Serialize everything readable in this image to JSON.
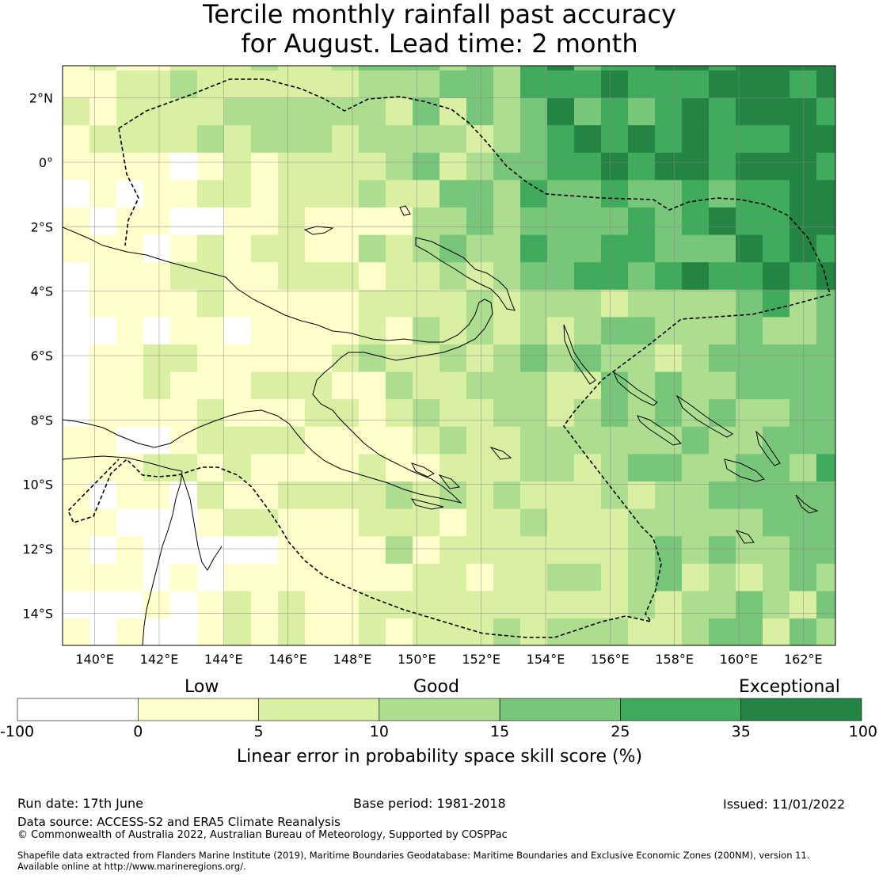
{
  "title": {
    "line1": "Tercile monthly rainfall past accuracy",
    "line2": "for August. Lead time: 2 month"
  },
  "map": {
    "lon_ticks": [
      "140°E",
      "142°E",
      "144°E",
      "146°E",
      "148°E",
      "150°E",
      "152°E",
      "154°E",
      "156°E",
      "158°E",
      "160°E",
      "162°E"
    ],
    "lat_ticks": [
      "2°N",
      "0°",
      "2°S",
      "4°S",
      "6°S",
      "8°S",
      "10°S",
      "12°S",
      "14°S"
    ],
    "extent": {
      "lon": [
        139,
        163
      ],
      "lat": [
        -15,
        3
      ]
    },
    "grid_step_deg": 0.84,
    "grid_lines": true
  },
  "colorbar": {
    "categories": [
      "Low",
      "Good",
      "Exceptional"
    ],
    "tick_labels": [
      "-100",
      "0",
      "5",
      "10",
      "15",
      "25",
      "35",
      "100"
    ],
    "colors": [
      "#ffffff",
      "#ffffcc",
      "#d9f0a3",
      "#addd8e",
      "#78c679",
      "#41ab5d",
      "#238443"
    ],
    "label": "Linear error in probability space skill score (%)"
  },
  "footer": {
    "run_date": "Run date: 17th June",
    "base_period": "Base period: 1981-2018",
    "issued": "Issued: 11/01/2022",
    "data_source": "Data source: ACCESS-S2 and ERA5 Climate Reanalysis",
    "copyright": "© Commonwealth of Australia 2022, Australian Bureau of Meteorology, Supported by COSPPac",
    "shapefile1": "Shapefile data extracted from Flanders Marine Institute (2019), Maritime Boundaries Geodatabase: Maritime Boundaries and Exclusive Economic Zones (200NM), version 11.",
    "shapefile2": "Available online at http://www.marineregions.org/."
  }
}
